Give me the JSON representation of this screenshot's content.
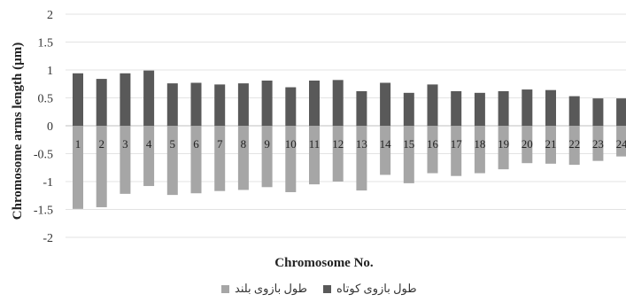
{
  "chart_data": {
    "type": "bar",
    "stacked": true,
    "categories": [
      "1",
      "2",
      "3",
      "4",
      "5",
      "6",
      "7",
      "8",
      "9",
      "10",
      "11",
      "12",
      "13",
      "14",
      "15",
      "16",
      "17",
      "18",
      "19",
      "20",
      "21",
      "22",
      "23",
      "24"
    ],
    "series": [
      {
        "name": "طول بازوی کوتاه",
        "color": "#595959",
        "values": [
          0.94,
          0.84,
          0.94,
          0.99,
          0.76,
          0.77,
          0.74,
          0.76,
          0.81,
          0.69,
          0.81,
          0.82,
          0.62,
          0.77,
          0.59,
          0.74,
          0.62,
          0.59,
          0.62,
          0.65,
          0.64,
          0.53,
          0.49,
          0.49
        ]
      },
      {
        "name": "طول بازوی بلند",
        "color": "#a6a6a6",
        "values": [
          -1.49,
          -1.46,
          -1.22,
          -1.08,
          -1.24,
          -1.21,
          -1.17,
          -1.15,
          -1.1,
          -1.19,
          -1.05,
          -1.0,
          -1.16,
          -0.88,
          -1.03,
          -0.85,
          -0.9,
          -0.85,
          -0.78,
          -0.67,
          -0.68,
          -0.7,
          -0.63,
          -0.55
        ]
      }
    ],
    "ylim": [
      -2,
      2
    ],
    "yticks": [
      "-2",
      "-1.5",
      "-1",
      "-0.5",
      "0",
      "0.5",
      "1",
      "1.5",
      "2"
    ],
    "ytick_values": [
      -2,
      -1.5,
      -1,
      -0.5,
      0,
      0.5,
      1,
      1.5,
      2
    ],
    "xlabel": "Chromosome No.",
    "ylabel": "Chromosome arms length (µm)",
    "legend_position": "bottom",
    "grid": true
  }
}
